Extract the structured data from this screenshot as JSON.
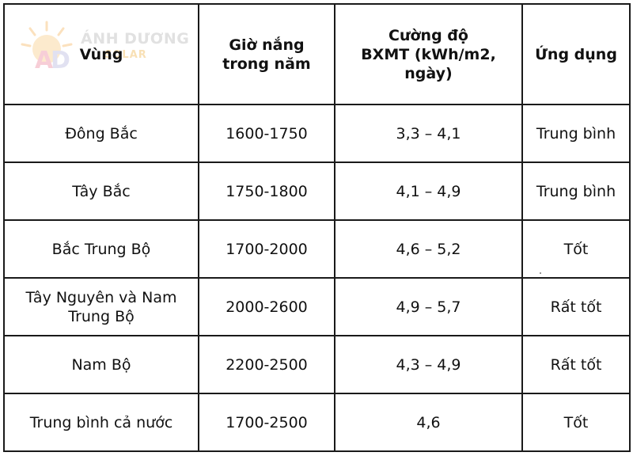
{
  "watermark": {
    "brand": "ÁNH DƯƠNG",
    "sub": "SOLAR",
    "logo_letters": "AD"
  },
  "table": {
    "headers": [
      [
        "Vùng"
      ],
      [
        "Giờ nắng",
        "trong năm"
      ],
      [
        "Cường độ",
        "BXMT (kWh/m2,",
        "ngày)"
      ],
      [
        "Ứng dụng"
      ]
    ],
    "rows": [
      {
        "region": [
          "Đông Bắc"
        ],
        "hours": "1600-1750",
        "intensity": "3,3 – 4,1",
        "usage": "Trung bình"
      },
      {
        "region": [
          "Tây Bắc"
        ],
        "hours": "1750-1800",
        "intensity": "4,1 – 4,9",
        "usage": "Trung bình"
      },
      {
        "region": [
          "Bắc Trung Bộ"
        ],
        "hours": "1700-2000",
        "intensity": "4,6 – 5,2",
        "usage": "Tốt"
      },
      {
        "region": [
          "Tây Nguyên và Nam",
          "Trung Bộ"
        ],
        "hours": "2000-2600",
        "intensity": "4,9 – 5,7",
        "usage": "Rất tốt"
      },
      {
        "region": [
          "Nam Bộ"
        ],
        "hours": "2200-2500",
        "intensity": "4,3 – 4,9",
        "usage": "Rất tốt"
      },
      {
        "region": [
          "Trung bình cả nước"
        ],
        "hours": "1700-2500",
        "intensity": "4,6",
        "usage": "Tốt"
      }
    ]
  },
  "colors": {
    "border": "#1a1a1a",
    "text": "#111111",
    "watermark_gray": "#c9c9c9",
    "watermark_orange": "#f4c77a"
  }
}
